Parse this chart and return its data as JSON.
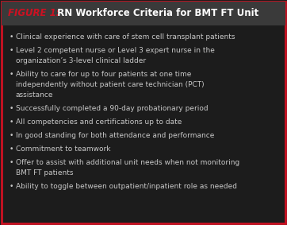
{
  "title_label": "FIGURE 1:",
  "title_text": " RN Workforce Criteria for BMT FT Unit",
  "background_color": "#1c1c1c",
  "title_bg_color": "#3a3a3a",
  "title_label_color": "#cc1122",
  "title_text_color": "#ffffff",
  "border_color": "#cc1122",
  "bullet_color": "#c8c8c8",
  "bullet_points": [
    "Clinical experience with care of stem cell transplant patients",
    "Level 2 competent nurse or Level 3 expert nurse in the\norganization’s 3-level clinical ladder",
    "Ability to care for up to four patients at one time\nindependently without patient care technician (PCT)\nassistance",
    "Successfully completed a 90-day probationary period",
    "All competencies and certifications up to date",
    "In good standing for both attendance and performance",
    "Commitment to teamwork",
    "Offer to assist with additional unit needs when not monitoring\nBMT FT patients",
    "Ability to toggle between outpatient/inpatient role as needed"
  ],
  "figsize": [
    3.62,
    2.83
  ],
  "dpi": 100
}
